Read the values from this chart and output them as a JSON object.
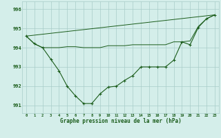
{
  "line1_x": [
    0,
    1,
    2,
    3,
    4,
    5,
    6,
    7,
    8,
    9,
    10,
    11,
    12,
    13,
    14,
    15,
    16,
    17,
    18,
    19,
    20,
    21,
    22,
    23
  ],
  "line1_y": [
    994.6,
    994.2,
    994.0,
    993.4,
    992.8,
    992.0,
    991.5,
    991.1,
    991.1,
    991.6,
    991.95,
    992.0,
    992.3,
    992.55,
    993.0,
    993.0,
    993.0,
    993.0,
    993.35,
    994.3,
    994.15,
    995.05,
    995.5,
    995.7
  ],
  "line2_x": [
    0,
    1,
    2,
    3,
    4,
    5,
    6,
    7,
    8,
    9,
    10,
    11,
    12,
    13,
    14,
    15,
    16,
    17,
    18,
    19,
    20,
    21,
    22,
    23
  ],
  "line2_y": [
    994.6,
    994.2,
    994.0,
    994.0,
    994.0,
    994.05,
    994.05,
    994.0,
    994.0,
    994.0,
    994.1,
    994.1,
    994.1,
    994.15,
    994.15,
    994.15,
    994.15,
    994.15,
    994.3,
    994.3,
    994.35,
    995.1,
    995.5,
    995.7
  ],
  "line3_x": [
    0,
    23
  ],
  "line3_y": [
    994.6,
    995.7
  ],
  "line_color": "#1a5c1a",
  "bg_color": "#d4eeea",
  "grid_color": "#a8ccc8",
  "xlabel": "Graphe pression niveau de la mer (hPa)",
  "ylim": [
    990.6,
    996.4
  ],
  "xlim": [
    -0.5,
    23.5
  ],
  "yticks": [
    991,
    992,
    993,
    994,
    995,
    996
  ],
  "xticks": [
    0,
    1,
    2,
    3,
    4,
    5,
    6,
    7,
    8,
    9,
    10,
    11,
    12,
    13,
    14,
    15,
    16,
    17,
    18,
    19,
    20,
    21,
    22,
    23
  ]
}
